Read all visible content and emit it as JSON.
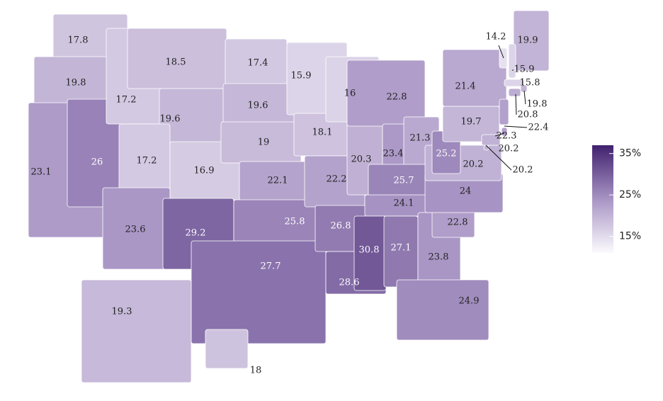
{
  "chart_data": {
    "type": "choropleth",
    "values": [
      17.8,
      19.8,
      23.1,
      26,
      17.2,
      18.5,
      19.6,
      17.2,
      16.9,
      23.6,
      29.2,
      17.4,
      19.6,
      19,
      22.1,
      25.8,
      27.7,
      15.9,
      18.1,
      22.2,
      26.8,
      28.6,
      16,
      20.3,
      22.8,
      23.4,
      21.3,
      25.7,
      24.1,
      30.8,
      27.1,
      23.8,
      24.9,
      22.8,
      24,
      20.2,
      25.2,
      19.7,
      21.4,
      19.9,
      14.2,
      15.9,
      15.8,
      19.8,
      20.8,
      22.4,
      22.3,
      20.2,
      20.2,
      19.3,
      18
    ],
    "colorbar": {
      "lim": [
        11,
        37
      ],
      "colors": [
        "#fbfafd",
        "#a894c4",
        "#40216e"
      ],
      "ticks": [
        {
          "value": 35,
          "label": "35%"
        },
        {
          "value": 25,
          "label": "25%"
        },
        {
          "value": 15,
          "label": "15%"
        }
      ]
    }
  }
}
